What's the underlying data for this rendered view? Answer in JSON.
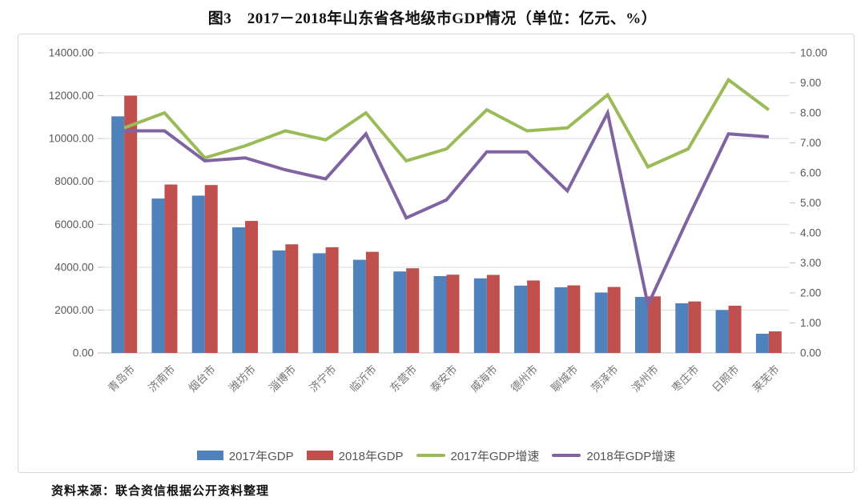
{
  "title": "图3　2017－2018年山东省各地级市GDP情况（单位：亿元、%）",
  "source": "资料来源：联合资信根据公开资料整理",
  "colors": {
    "bar_2017": "#4F81BD",
    "bar_2018": "#C0504D",
    "line_2017_growth": "#9BBB59",
    "line_2018_growth": "#8064A2",
    "gridline": "#DCDCDC",
    "axis_line": "#BFBFBF",
    "tick_text": "#595959",
    "category_text": "#767676",
    "frame_border": "#D8D8D8"
  },
  "chart_data": {
    "type": "bar",
    "subtype": "combo-bar-line-dual-axis",
    "title": "图3　2017－2018年山东省各地级市GDP情况（单位：亿元、%）",
    "categories": [
      "青岛市",
      "济南市",
      "烟台市",
      "潍坊市",
      "淄博市",
      "济宁市",
      "临沂市",
      "东营市",
      "泰安市",
      "威海市",
      "德州市",
      "聊城市",
      "菏泽市",
      "滨州市",
      "枣庄市",
      "日照市",
      "莱芜市"
    ],
    "series": [
      {
        "name": "2017年GDP",
        "type": "bar",
        "axis": "left",
        "color": "#4F81BD",
        "values": [
          11037,
          7202,
          7339,
          5859,
          4781,
          4651,
          4345,
          3800,
          3585,
          3480,
          3140,
          3064,
          2820,
          2613,
          2316,
          2003,
          896
        ]
      },
      {
        "name": "2018年GDP",
        "type": "bar",
        "axis": "left",
        "color": "#C0504D",
        "values": [
          12002,
          7857,
          7833,
          6157,
          5068,
          4931,
          4718,
          3950,
          3651,
          3641,
          3380,
          3152,
          3078,
          2640,
          2402,
          2202,
          1006
        ]
      },
      {
        "name": "2017年GDP增速",
        "type": "line",
        "axis": "right",
        "color": "#9BBB59",
        "values": [
          7.5,
          8.0,
          6.5,
          6.9,
          7.4,
          7.1,
          8.0,
          6.4,
          6.8,
          8.1,
          7.4,
          7.5,
          8.6,
          6.2,
          6.8,
          9.1,
          8.1
        ]
      },
      {
        "name": "2018年GDP增速",
        "type": "line",
        "axis": "right",
        "color": "#8064A2",
        "values": [
          7.4,
          7.4,
          6.4,
          6.5,
          6.1,
          5.8,
          7.3,
          4.5,
          5.1,
          6.7,
          6.7,
          5.4,
          8.0,
          1.6,
          4.5,
          7.3,
          7.2
        ]
      }
    ],
    "left_axis": {
      "min": 0,
      "max": 14000,
      "step": 2000,
      "decimals": 2,
      "unit": "亿元"
    },
    "right_axis": {
      "min": 0,
      "max": 10,
      "step": 1,
      "decimals": 2,
      "unit": "%"
    },
    "grid": true,
    "legend_position": "bottom"
  }
}
